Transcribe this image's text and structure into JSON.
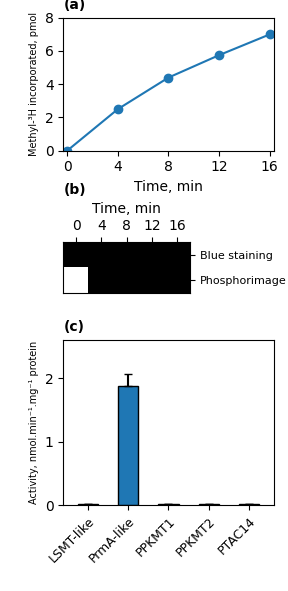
{
  "chart_data": [
    {
      "type": "line",
      "title": "(a)",
      "x": [
        0,
        4,
        8,
        12,
        16
      ],
      "values": [
        0,
        2.5,
        4.4,
        5.75,
        7.0
      ],
      "marker": "o",
      "xlabel": "Time, min",
      "ylabel": "Methyl-³H incorporated, pmol",
      "xlim": [
        -0.3,
        16.3
      ],
      "ylim": [
        0,
        8
      ],
      "xticks": [
        0,
        4,
        8,
        12,
        16
      ],
      "yticks": [
        0,
        2,
        4,
        6,
        8
      ]
    },
    {
      "type": "gel",
      "title": "(b)",
      "categories": [
        "0",
        "4",
        "8",
        "12",
        "16"
      ],
      "xlabel": "Time, min",
      "series": [
        {
          "name": "Blue staining",
          "values": [
            1,
            1,
            1,
            1,
            1
          ]
        },
        {
          "name": "Phosphorimage",
          "values": [
            0,
            1,
            1,
            1,
            1
          ]
        }
      ]
    },
    {
      "type": "bar",
      "title": "(c)",
      "categories": [
        "LSMT-like",
        "PrmA-like",
        "PPKMT1",
        "PPKMT2",
        "PTAC14"
      ],
      "values": [
        0.02,
        1.88,
        0.02,
        0.02,
        0.02
      ],
      "errors": [
        0.0,
        0.18,
        0.0,
        0.0,
        0.0
      ],
      "ylabel": "Activity, nmol.min⁻¹.mg⁻¹ protein",
      "ylim": [
        0,
        2.6
      ],
      "yticks": [
        0,
        1,
        2
      ]
    }
  ]
}
